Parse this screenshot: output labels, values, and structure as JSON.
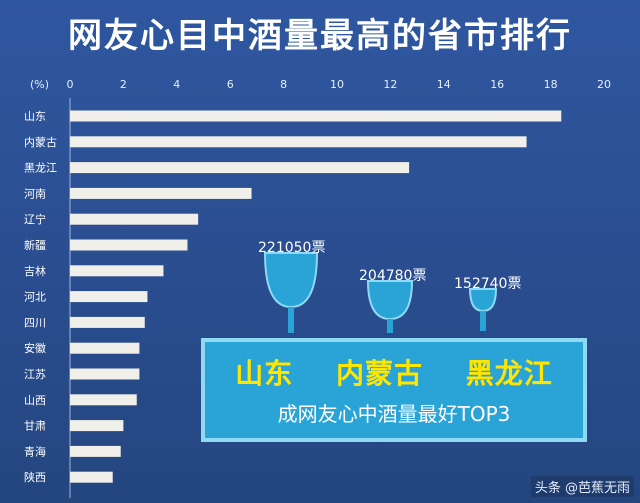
{
  "title": "网友心目中酒量最高的省市排行",
  "chart_data": {
    "type": "bar",
    "orientation": "horizontal",
    "title": "网友心目中酒量最高的省市排行",
    "axis_unit": "(%)",
    "xlim": [
      0,
      20
    ],
    "xticks": [
      0,
      2,
      4,
      6,
      8,
      10,
      12,
      14,
      16,
      18,
      20
    ],
    "categories": [
      "山东",
      "内蒙古",
      "黑龙江",
      "河南",
      "辽宁",
      "新疆",
      "吉林",
      "河北",
      "四川",
      "安徽",
      "江苏",
      "山西",
      "甘肃",
      "青海",
      "陕西"
    ],
    "values": [
      18.4,
      17.1,
      12.7,
      6.8,
      4.8,
      4.4,
      3.5,
      2.9,
      2.8,
      2.6,
      2.6,
      2.5,
      2.0,
      1.9,
      1.6
    ],
    "bar_color": "#f1efe9",
    "grid": false
  },
  "highlight": {
    "glasses": [
      {
        "province": "山东",
        "votes": "221050票"
      },
      {
        "province": "内蒙古",
        "votes": "204780票"
      },
      {
        "province": "黑龙江",
        "votes": "152740票"
      }
    ],
    "top3": [
      "山东",
      "内蒙古",
      "黑龙江"
    ],
    "caption": "成网友心中酒量最好TOP3",
    "box_color": "#2aa3d6",
    "text_color": "#ffe600"
  },
  "watermark": "头条 @芭蕉无雨"
}
